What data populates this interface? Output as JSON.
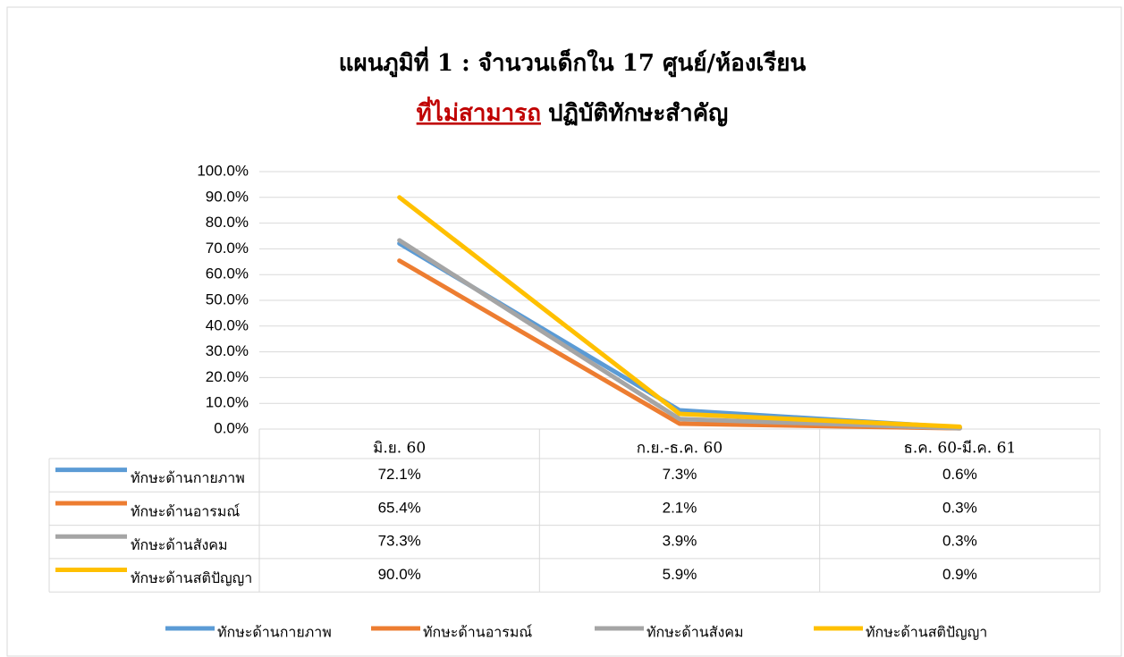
{
  "chart_data": {
    "type": "line",
    "title": "แผนภูมิที่ 1 : จำนวนเด็กใน 17 ศูนย์/ห้องเรียน",
    "subtitle_emphasis": "ที่ไม่สามารถ",
    "subtitle": "ปฏิบัติทักษะสำคัญ",
    "categories": [
      "มิ.ย. 60",
      "ก.ย.-ธ.ค. 60",
      "ธ.ค. 60-มี.ค. 61"
    ],
    "series": [
      {
        "name": "ทักษะด้านกายภาพ",
        "color": "#5b9bd5",
        "values": [
          72.1,
          7.3,
          0.6
        ],
        "value_labels": [
          "72.1%",
          "7.3%",
          "0.6%"
        ]
      },
      {
        "name": "ทักษะด้านอารมณ์",
        "color": "#ed7d31",
        "values": [
          65.4,
          2.1,
          0.3
        ],
        "value_labels": [
          "65.4%",
          "2.1%",
          "0.3%"
        ]
      },
      {
        "name": "ทักษะด้านสังคม",
        "color": "#a5a5a5",
        "values": [
          73.3,
          3.9,
          0.3
        ],
        "value_labels": [
          "73.3%",
          "3.9%",
          "0.3%"
        ]
      },
      {
        "name": "ทักษะด้านสติปัญญา",
        "color": "#ffc000",
        "values": [
          90.0,
          5.9,
          0.9
        ],
        "value_labels": [
          "90.0%",
          "5.9%",
          "0.9%"
        ]
      }
    ],
    "ylim": [
      0,
      100
    ],
    "yticks": [
      {
        "value": 0,
        "label": "0.0%"
      },
      {
        "value": 10,
        "label": "10.0%"
      },
      {
        "value": 20,
        "label": "20.0%"
      },
      {
        "value": 30,
        "label": "30.0%"
      },
      {
        "value": 40,
        "label": "40.0%"
      },
      {
        "value": 50,
        "label": "50.0%"
      },
      {
        "value": 60,
        "label": "60.0%"
      },
      {
        "value": 70,
        "label": "70.0%"
      },
      {
        "value": 80,
        "label": "80.0%"
      },
      {
        "value": 90,
        "label": "90.0%"
      },
      {
        "value": 100,
        "label": "100.0%"
      }
    ],
    "grid": true,
    "legend": "bottom"
  }
}
